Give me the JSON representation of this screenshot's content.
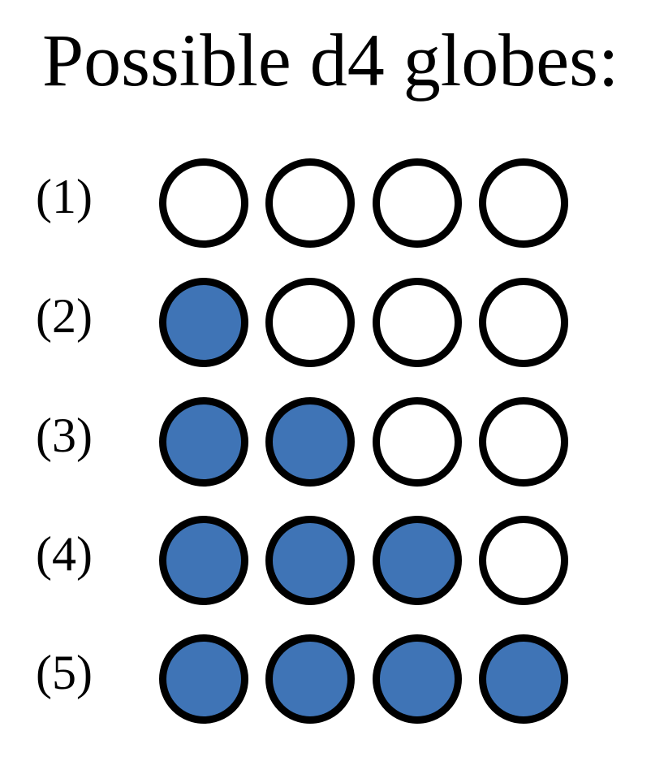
{
  "title": "Possible d4 globes:",
  "colors": {
    "filled": "#3f74b6",
    "empty": "#ffffff",
    "outline": "#000000"
  },
  "rows": [
    {
      "label": "(1)",
      "globes": [
        false,
        false,
        false,
        false
      ]
    },
    {
      "label": "(2)",
      "globes": [
        true,
        false,
        false,
        false
      ]
    },
    {
      "label": "(3)",
      "globes": [
        true,
        true,
        false,
        false
      ]
    },
    {
      "label": "(4)",
      "globes": [
        true,
        true,
        true,
        false
      ]
    },
    {
      "label": "(5)",
      "globes": [
        true,
        true,
        true,
        true
      ]
    }
  ]
}
